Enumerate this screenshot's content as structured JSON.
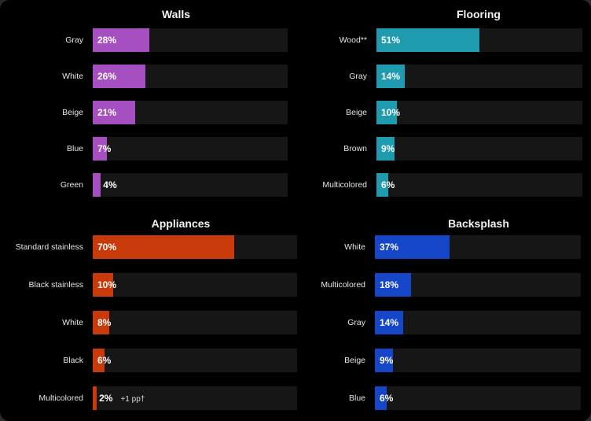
{
  "chart_data": [
    {
      "type": "bar",
      "orientation": "horizontal",
      "title": "Walls",
      "categories": [
        "Gray",
        "White",
        "Beige",
        "Blue",
        "Green"
      ],
      "values": [
        28,
        26,
        21,
        7,
        4
      ],
      "value_labels": [
        "28%",
        "26%",
        "21%",
        "7%",
        "4%"
      ],
      "xlim": [
        0,
        100
      ],
      "color": "#a64fc0"
    },
    {
      "type": "bar",
      "orientation": "horizontal",
      "title": "Flooring",
      "categories": [
        "Wood**",
        "Gray",
        "Beige",
        "Brown",
        "Multicolored"
      ],
      "values": [
        51,
        14,
        10,
        9,
        6
      ],
      "value_labels": [
        "51%",
        "14%",
        "10%",
        "9%",
        "6%"
      ],
      "xlim": [
        0,
        100
      ],
      "color": "#1f9bb0"
    },
    {
      "type": "bar",
      "orientation": "horizontal",
      "title": "Appliances",
      "categories": [
        "Standard stainless",
        "Black stainless",
        "White",
        "Black",
        "Multicolored"
      ],
      "values": [
        70,
        10,
        8,
        6,
        2
      ],
      "value_labels": [
        "70%",
        "10%",
        "8%",
        "6%",
        "2%"
      ],
      "annotations": [
        "",
        "",
        "",
        "",
        "+1 pp†"
      ],
      "xlim": [
        0,
        100
      ],
      "color": "#c83a0a"
    },
    {
      "type": "bar",
      "orientation": "horizontal",
      "title": "Backsplash",
      "categories": [
        "White",
        "Multicolored",
        "Gray",
        "Beige",
        "Blue"
      ],
      "values": [
        37,
        18,
        14,
        9,
        6
      ],
      "value_labels": [
        "37%",
        "18%",
        "14%",
        "9%",
        "6%"
      ],
      "xlim": [
        0,
        100
      ],
      "color": "#1546c8"
    }
  ]
}
